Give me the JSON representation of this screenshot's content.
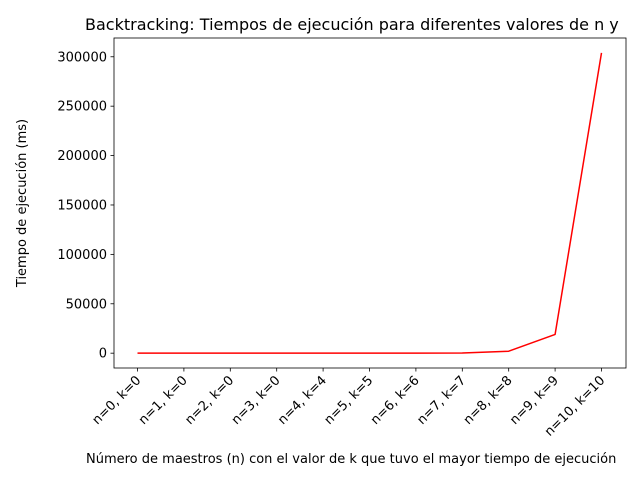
{
  "chart_data": {
    "type": "line",
    "title": "Backtracking: Tiempos de ejecución para diferentes valores de n y",
    "xlabel": "Número de maestros (n) con el valor de k que tuvo el mayor tiempo de ejecución",
    "ylabel": "Tiempo de ejecución (ms)",
    "categories": [
      "n=0, k=0",
      "n=1, k=0",
      "n=2, k=0",
      "n=3, k=0",
      "n=4, k=4",
      "n=5, k=5",
      "n=6, k=6",
      "n=7, k=7",
      "n=8, k=8",
      "n=9, k=9",
      "n=10, k=10"
    ],
    "series": [
      {
        "color": "#ff0000",
        "values": [
          0,
          0,
          0,
          0,
          1,
          5,
          30,
          200,
          2000,
          19000,
          304000
        ]
      }
    ],
    "ylim": [
      -15000,
      319000
    ],
    "yticks": [
      0,
      50000,
      100000,
      150000,
      200000,
      250000,
      300000
    ],
    "ytick_labels": [
      "0",
      "50000",
      "100000",
      "150000",
      "200000",
      "250000",
      "300000"
    ],
    "grid": false,
    "legend": "none"
  }
}
